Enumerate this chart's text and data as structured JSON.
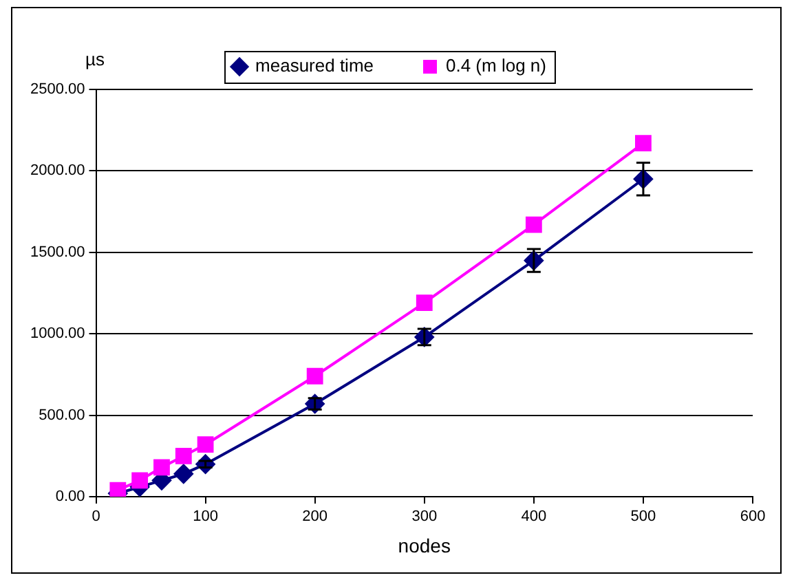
{
  "chart_data": {
    "type": "line",
    "xlabel": "nodes",
    "ylabel": "µs",
    "x": [
      20,
      40,
      60,
      80,
      100,
      200,
      300,
      400,
      500
    ],
    "series": [
      {
        "name": "measured time",
        "color": "#000080",
        "marker": "diamond",
        "values": [
          20,
          60,
          100,
          140,
          200,
          570,
          980,
          1450,
          1950
        ],
        "errors": [
          null,
          null,
          null,
          null,
          20,
          35,
          50,
          70,
          100
        ]
      },
      {
        "name": "0.4 (m log n)",
        "color": "#ff00ff",
        "marker": "square",
        "values": [
          40,
          100,
          180,
          250,
          320,
          740,
          1190,
          1670,
          2170
        ]
      }
    ],
    "xlim": [
      0,
      600
    ],
    "xticks": [
      0,
      100,
      200,
      300,
      400,
      500,
      600
    ],
    "ylim": [
      0,
      2500
    ],
    "yticks": [
      {
        "value": 0,
        "label": "0.00"
      },
      {
        "value": 500,
        "label": "500.00"
      },
      {
        "value": 1000,
        "label": "1000.00"
      },
      {
        "value": 1500,
        "label": "1500.00"
      },
      {
        "value": 2000,
        "label": "2000.00"
      },
      {
        "value": 2500,
        "label": "2500.00"
      }
    ],
    "grid": "y",
    "legend": "top",
    "line_style": "solid"
  }
}
